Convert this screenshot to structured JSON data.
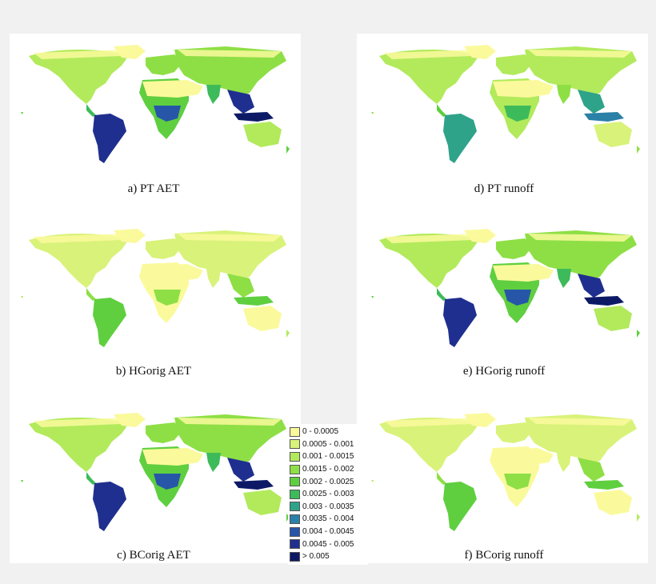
{
  "panels": [
    {
      "id": "a",
      "caption": "a) PT AET",
      "intensity": 3
    },
    {
      "id": "b",
      "caption": "b) HGorig AET",
      "intensity": 1
    },
    {
      "id": "c",
      "caption": "c) BCorig AET",
      "intensity": 3
    },
    {
      "id": "d",
      "caption": "d) PT runoff",
      "intensity": 2
    },
    {
      "id": "e",
      "caption": "e) HGorig runoff",
      "intensity": 3
    },
    {
      "id": "f",
      "caption": "f) BCorig runoff",
      "intensity": 1
    }
  ],
  "legend": {
    "items": [
      {
        "label": "0 - 0.0005",
        "color": "#fafa9c"
      },
      {
        "label": "0.0005 - 0.001",
        "color": "#d9f27a"
      },
      {
        "label": "0.001 - 0.0015",
        "color": "#b2ea5c"
      },
      {
        "label": "0.0015 - 0.002",
        "color": "#8edf45"
      },
      {
        "label": "0.002 - 0.0025",
        "color": "#5fcf3f"
      },
      {
        "label": "0.0025 - 0.003",
        "color": "#3dbb5a"
      },
      {
        "label": "0.003 - 0.0035",
        "color": "#2ea38a"
      },
      {
        "label": "0.0035 - 0.004",
        "color": "#2a80a6"
      },
      {
        "label": "0.004 - 0.0045",
        "color": "#2756a8"
      },
      {
        "label": "0.0045 - 0.005",
        "color": "#1f2f8f"
      },
      {
        "label": "> 0.005",
        "color": "#0c1a66"
      }
    ]
  }
}
